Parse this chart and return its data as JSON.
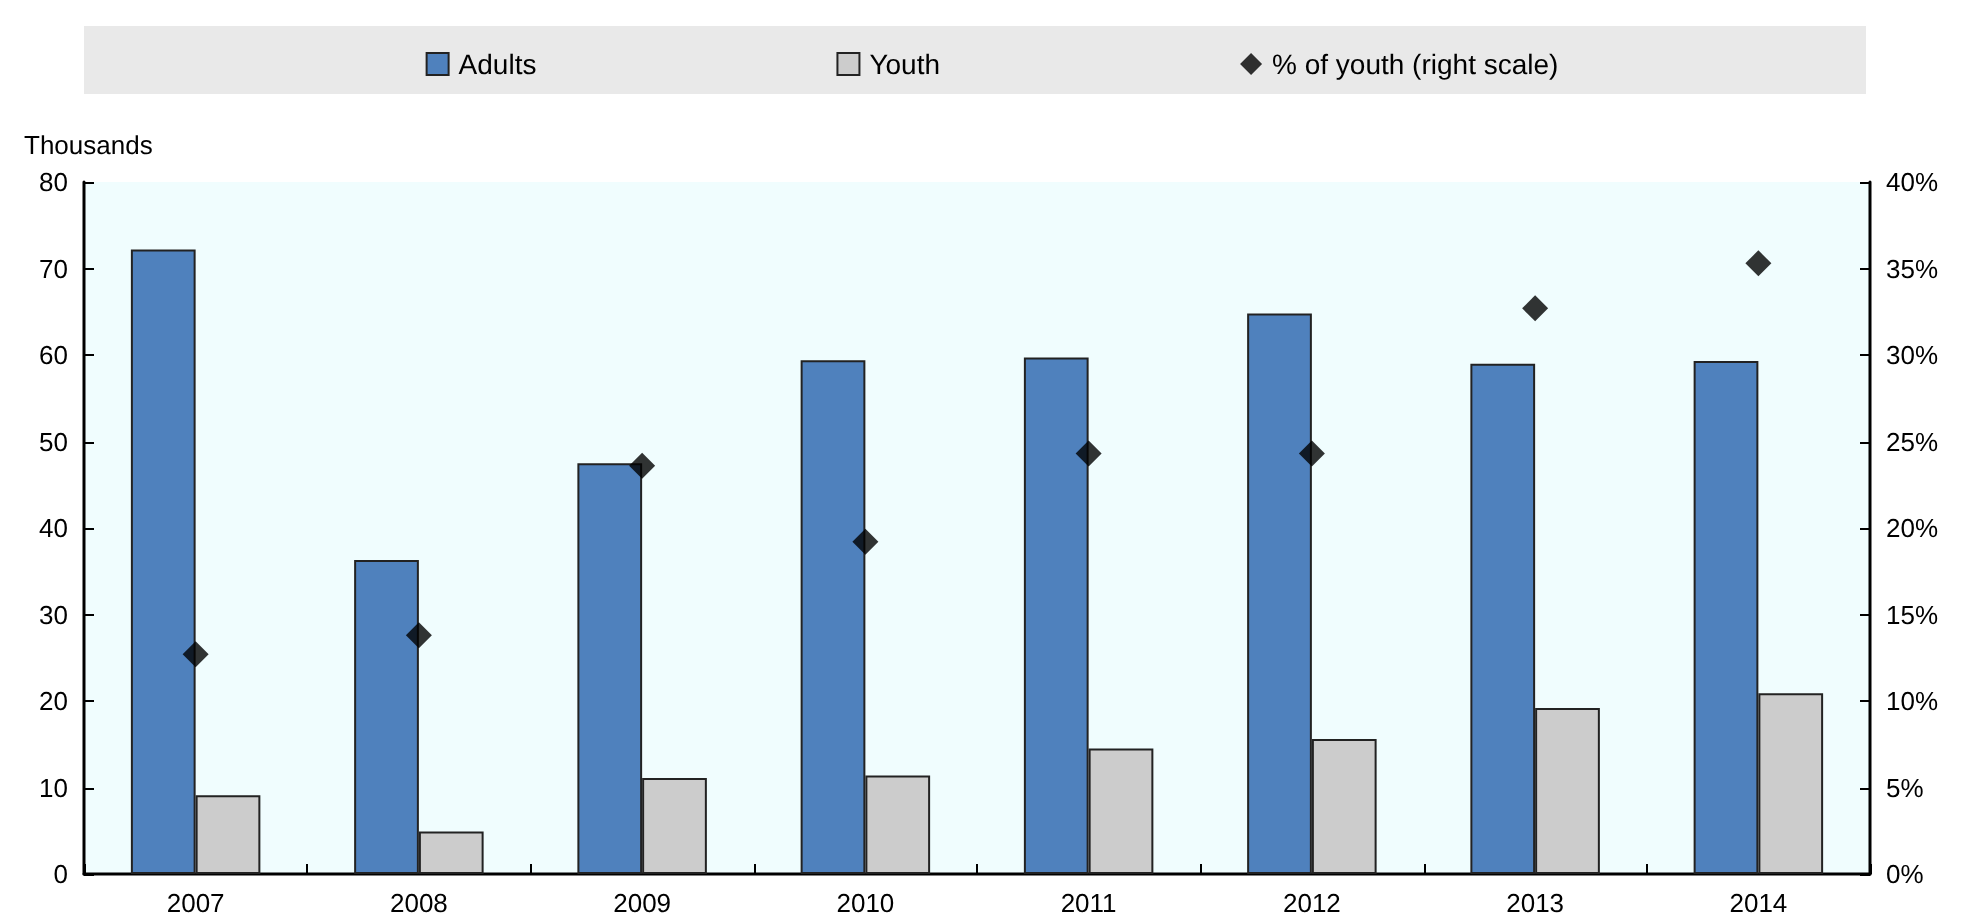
{
  "chart_data": {
    "type": "bar",
    "ylabel": "Thousands",
    "categories": [
      "2007",
      "2008",
      "2009",
      "2010",
      "2011",
      "2012",
      "2013",
      "2014"
    ],
    "series": [
      {
        "name": "Adults",
        "color": "#4f81bd",
        "values": [
          72.2,
          36.3,
          47.5,
          59.4,
          59.7,
          64.8,
          59.0,
          59.3
        ]
      },
      {
        "name": "Youth",
        "color": "#cccccc",
        "values": [
          9.1,
          4.9,
          11.1,
          11.4,
          14.5,
          15.6,
          19.2,
          20.9
        ]
      },
      {
        "name": "% of youth (right scale)",
        "type": "scatter",
        "axis": "y2",
        "color": "#000000",
        "values": [
          12.7,
          13.8,
          23.6,
          19.2,
          24.3,
          24.3,
          32.7,
          35.3
        ]
      }
    ],
    "ylim": [
      0,
      80
    ],
    "yticks": [
      0,
      10,
      20,
      30,
      40,
      50,
      60,
      70,
      80
    ],
    "y2lim": [
      0,
      40
    ],
    "y2ticks": [
      {
        "value": 0,
        "label": "0%"
      },
      {
        "value": 5,
        "label": "5%"
      },
      {
        "value": 10,
        "label": "10%"
      },
      {
        "value": 15,
        "label": "15%"
      },
      {
        "value": 20,
        "label": "20%"
      },
      {
        "value": 25,
        "label": "25%"
      },
      {
        "value": 30,
        "label": "30%"
      },
      {
        "value": 35,
        "label": "35%"
      },
      {
        "value": 40,
        "label": "40%"
      }
    ],
    "marker": "diamond",
    "legend": "top",
    "grid": false
  }
}
